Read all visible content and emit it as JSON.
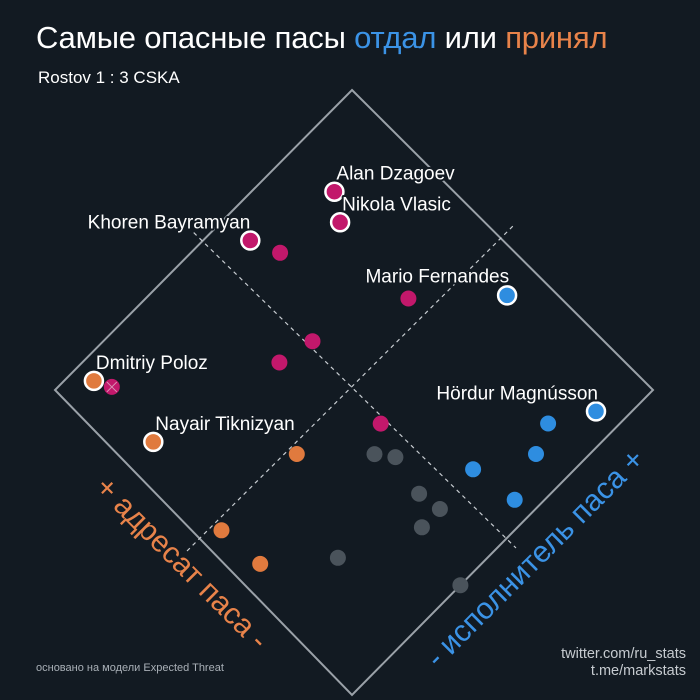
{
  "title": {
    "part1": "Самые опасные пасы ",
    "word_gave": "отдал",
    "part2": " или ",
    "word_received": "принял"
  },
  "subtitle": "Rostov 1 : 3 CSKA",
  "footnote": "основано на модели Expected Threat",
  "credits": [
    "twitter.com/ru_stats",
    "t.me/markstats"
  ],
  "colors": {
    "background": "#121a22",
    "receiver": "#e07a3e",
    "passer": "#2e8de0",
    "both": "#c2186b",
    "neutral": "#4a535b",
    "frame": "#9aa1a8"
  },
  "chart_data": {
    "type": "scatter",
    "xlabel": "+ адресат паса -",
    "ylabel": "- исполнитель паса +",
    "points": [
      {
        "label": "Alan Dzagoev",
        "r": 0.86,
        "p": 0.79,
        "group": "both",
        "highlight": true
      },
      {
        "label": "Khoren Bayramyan",
        "r": 0.92,
        "p": 0.57,
        "group": "both",
        "highlight": true
      },
      {
        "label": "Nikola Vlasic",
        "r": 0.8,
        "p": 0.75,
        "group": "both",
        "highlight": true
      },
      {
        "label": "",
        "r": 0.85,
        "p": 0.6,
        "group": "both",
        "highlight": false
      },
      {
        "label": "",
        "r": 0.91,
        "p": 0.1,
        "group": "both",
        "highlight": false,
        "crossed": true
      },
      {
        "label": "",
        "r": 0.56,
        "p": 0.74,
        "group": "both",
        "highlight": false
      },
      {
        "label": "",
        "r": 0.67,
        "p": 0.42,
        "group": "both",
        "highlight": false
      },
      {
        "label": "",
        "r": 0.65,
        "p": 0.51,
        "group": "both",
        "highlight": false
      },
      {
        "label": "",
        "r": 0.4,
        "p": 0.49,
        "group": "both",
        "highlight": false
      },
      {
        "label": "Mario Fernandes",
        "r": 0.4,
        "p": 0.91,
        "group": "passer",
        "highlight": true
      },
      {
        "label": "Hördur Magnússon",
        "r": 0.06,
        "p": 0.87,
        "group": "passer",
        "highlight": true
      },
      {
        "label": "",
        "r": 0.09,
        "p": 0.7,
        "group": "passer",
        "highlight": false
      },
      {
        "label": "",
        "r": 0.12,
        "p": 0.77,
        "group": "passer",
        "highlight": false
      },
      {
        "label": "",
        "r": 0.17,
        "p": 0.57,
        "group": "passer",
        "highlight": false
      },
      {
        "label": "",
        "r": 0.05,
        "p": 0.59,
        "group": "passer",
        "highlight": false
      },
      {
        "label": "Dmitriy Poloz",
        "r": 0.95,
        "p": 0.08,
        "group": "receiver",
        "highlight": true
      },
      {
        "label": "Nayair Tiknizyan",
        "r": 0.75,
        "p": 0.08,
        "group": "receiver",
        "highlight": true
      },
      {
        "label": "",
        "r": 0.49,
        "p": 0.3,
        "group": "receiver",
        "highlight": false
      },
      {
        "label": "",
        "r": 0.49,
        "p": 0.05,
        "group": "receiver",
        "highlight": false
      },
      {
        "label": "",
        "r": 0.37,
        "p": 0.06,
        "group": "receiver",
        "highlight": false
      },
      {
        "label": "",
        "r": 0.36,
        "p": 0.43,
        "group": "neutral",
        "highlight": false
      },
      {
        "label": "",
        "r": 0.32,
        "p": 0.46,
        "group": "neutral",
        "highlight": false
      },
      {
        "label": "",
        "r": 0.16,
        "p": 0.45,
        "group": "neutral",
        "highlight": false
      },
      {
        "label": "",
        "r": 0.25,
        "p": 0.2,
        "group": "neutral",
        "highlight": false
      },
      {
        "label": "",
        "r": 0.22,
        "p": 0.44,
        "group": "neutral",
        "highlight": false
      },
      {
        "label": "",
        "r": 0.16,
        "p": 0.39,
        "group": "neutral",
        "highlight": false
      },
      {
        "label": "",
        "r": 0.0,
        "p": 0.36,
        "group": "neutral",
        "highlight": false
      }
    ]
  }
}
